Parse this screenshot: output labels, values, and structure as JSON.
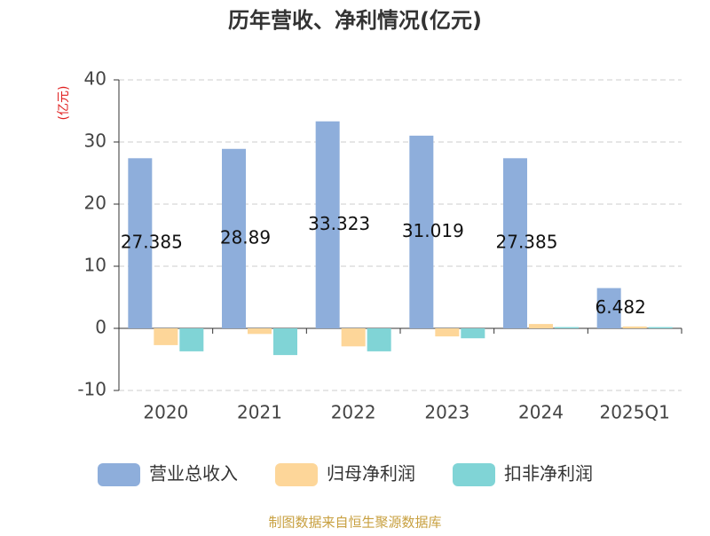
{
  "chart_data": {
    "type": "bar",
    "title": "历年营收、净利情况(亿元)",
    "y_label": "(亿元)",
    "categories": [
      "2020",
      "2021",
      "2022",
      "2023",
      "2024",
      "2025Q1"
    ],
    "series": [
      {
        "name": "营业总收入",
        "color": "#8eaedb",
        "values": [
          27.385,
          28.89,
          33.323,
          31.019,
          27.385,
          6.482
        ]
      },
      {
        "name": "归母净利润",
        "color": "#fdd699",
        "values": [
          -2.7,
          -0.9,
          -2.9,
          -1.3,
          0.7,
          0.3
        ]
      },
      {
        "name": "扣非净利润",
        "color": "#80d4d6",
        "values": [
          -3.7,
          -4.3,
          -3.7,
          -1.6,
          0.2,
          0.2
        ]
      }
    ],
    "ylim": [
      -10,
      40
    ],
    "yticks": [
      -10,
      0,
      10,
      20,
      30,
      40
    ],
    "grid": true,
    "legend": "bottom",
    "source": "制图数据来自恒生聚源数据库"
  }
}
